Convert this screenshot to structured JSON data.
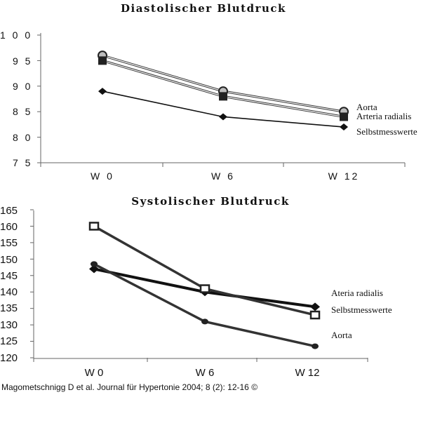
{
  "chart_data": [
    {
      "type": "line",
      "title": "Diastolischer Blutdruck",
      "categories": [
        "W 0",
        "W 6",
        "W 12"
      ],
      "y_tick_labels": [
        "1 0 0",
        "9 5",
        "9 0",
        "8 5",
        "8 0",
        "7 5"
      ],
      "y_ticks": [
        100,
        95,
        90,
        85,
        80,
        75
      ],
      "ylim": [
        75,
        100
      ],
      "series": [
        {
          "name": "Aorta",
          "values": [
            96,
            89,
            85
          ],
          "marker": "circle"
        },
        {
          "name": "Arteria radialis",
          "values": [
            95,
            88,
            84
          ],
          "marker": "square"
        },
        {
          "name": "Selbstmesswerte",
          "values": [
            89,
            84,
            82
          ],
          "marker": "diamond"
        }
      ]
    },
    {
      "type": "line",
      "title": "Systolischer Blutdruck",
      "categories": [
        "W 0",
        "W 6",
        "W 12"
      ],
      "y_tick_labels": [
        "165",
        "160",
        "155",
        "150",
        "145",
        "140",
        "135",
        "130",
        "125",
        "120"
      ],
      "y_ticks": [
        165,
        160,
        155,
        150,
        145,
        140,
        135,
        130,
        125,
        120
      ],
      "ylim": [
        120,
        165
      ],
      "series": [
        {
          "name": "Ateria radialis",
          "values": [
            147,
            140,
            135.5
          ],
          "marker": "diamond"
        },
        {
          "name": "Selbstmesswerte",
          "values": [
            160,
            141,
            133
          ],
          "marker": "square"
        },
        {
          "name": "Aorta",
          "values": [
            148.5,
            131,
            123.5
          ],
          "marker": "dot"
        }
      ]
    }
  ],
  "caption": "Magometschnigg D et al. Journal für Hypertonie 2004; 8 (2): 12-16 ©"
}
